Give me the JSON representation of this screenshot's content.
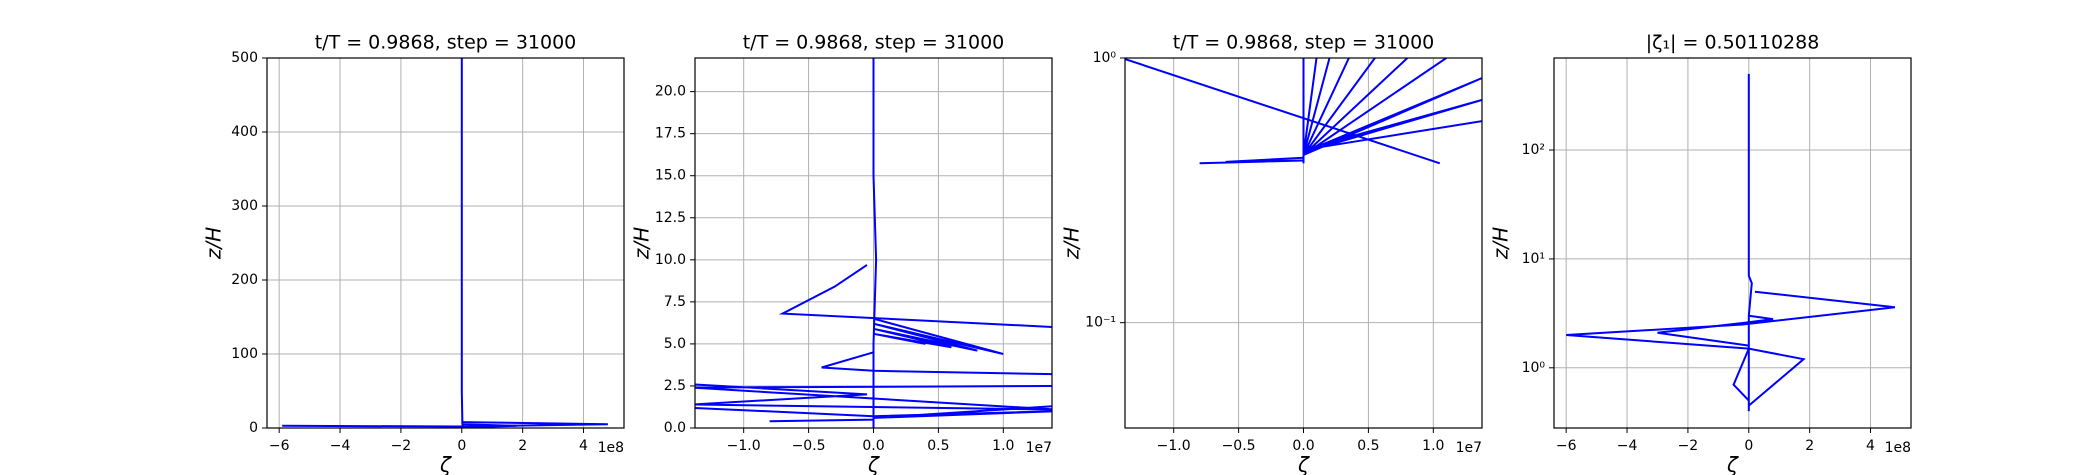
{
  "chart_data": [
    {
      "type": "line",
      "title": "t/T = 0.9868, step = 31000",
      "xlabel": "ζ",
      "ylabel": "z/H",
      "x_offset_label": "1e8",
      "grid": true,
      "xlim": [
        -6.4,
        5.33
      ],
      "ylim": [
        0,
        500
      ],
      "xticks": [
        {
          "value": -6,
          "label": "−6"
        },
        {
          "value": -4,
          "label": "−4"
        },
        {
          "value": -2,
          "label": "−2"
        },
        0,
        2,
        4
      ],
      "yticks": [
        0,
        100,
        200,
        300,
        400,
        500
      ],
      "series": [
        {
          "color": "#0000ff",
          "x": [
            0,
            0.05,
            0.02,
            0,
            0
          ],
          "values": [
            0,
            2,
            6,
            50,
            500
          ]
        },
        {
          "color": "#0000ff",
          "x": [
            -5.9,
            0,
            4.8,
            0
          ],
          "values": [
            3,
            2,
            5,
            8
          ]
        },
        {
          "color": "#0000ff",
          "x": [
            0,
            1.8,
            0
          ],
          "values": [
            1,
            3,
            5
          ]
        }
      ]
    },
    {
      "type": "line",
      "title": "t/T = 0.9868, step = 31000",
      "xlabel": "ζ",
      "ylabel": "z/H",
      "x_offset_label": "1e7",
      "grid": true,
      "xlim": [
        -1.375,
        1.375
      ],
      "ylim": [
        0,
        22
      ],
      "xticks": [
        {
          "value": -1,
          "label": "−1.0"
        },
        {
          "value": -0.5,
          "label": "−0.5"
        },
        {
          "value": 0,
          "label": "0.0"
        },
        {
          "value": 0.5,
          "label": "0.5"
        },
        {
          "value": 1,
          "label": "1.0"
        }
      ],
      "yticks": [
        {
          "value": 0,
          "label": "0.0"
        },
        2.5,
        {
          "value": 5,
          "label": "5.0"
        },
        7.5,
        {
          "value": 10,
          "label": "10.0"
        },
        12.5,
        {
          "value": 15,
          "label": "15.0"
        },
        17.5,
        {
          "value": 20,
          "label": "20.0"
        }
      ],
      "series": [
        {
          "color": "#0000ff",
          "x": [
            0,
            0,
            0.02,
            0,
            0,
            0
          ],
          "values": [
            0,
            5,
            10,
            15,
            20,
            22
          ]
        },
        {
          "color": "#0000ff",
          "x": [
            -0.05,
            -0.3,
            -0.7,
            1.4
          ],
          "values": [
            9.7,
            8.4,
            6.8,
            6.0
          ]
        },
        {
          "color": "#0000ff",
          "x": [
            0,
            -0.4,
            0,
            1.4
          ],
          "values": [
            4.5,
            3.6,
            3.4,
            3.2
          ]
        },
        {
          "color": "#0000ff",
          "x": [
            0,
            1.0,
            0,
            0.8,
            0,
            0.6,
            0,
            0.4
          ],
          "values": [
            6.5,
            4.4,
            6.2,
            4.6,
            5.9,
            4.8,
            5.6,
            5.0
          ]
        },
        {
          "color": "#0000ff",
          "x": [
            -1.4,
            -0.05,
            -1.4,
            1.4,
            -1.4,
            1.4
          ],
          "values": [
            2.6,
            2.0,
            1.4,
            1.1,
            2.4,
            2.5
          ]
        },
        {
          "color": "#0000ff",
          "x": [
            -1.4,
            0,
            1.4,
            0,
            1.4
          ],
          "values": [
            1.2,
            0.7,
            1.0,
            0.6,
            1.3
          ]
        },
        {
          "color": "#0000ff",
          "x": [
            -0.8,
            0,
            0
          ],
          "values": [
            0.4,
            0.5,
            1.2
          ]
        }
      ]
    },
    {
      "type": "line",
      "title": "t/T = 0.9868, step = 31000",
      "xlabel": "ζ",
      "ylabel": "z/H",
      "x_offset_label": "1e7",
      "grid": true,
      "yscale": "log",
      "xlim": [
        -1.375,
        1.375
      ],
      "ylim": [
        0.04,
        1
      ],
      "xticks": [
        {
          "value": -1,
          "label": "−1.0"
        },
        {
          "value": -0.5,
          "label": "−0.5"
        },
        {
          "value": 0,
          "label": "0.0"
        },
        {
          "value": 0.5,
          "label": "0.5"
        },
        {
          "value": 1,
          "label": "1.0"
        }
      ],
      "yticks": [
        {
          "value": 0.1,
          "label": "10⁻¹"
        },
        {
          "value": 1,
          "label": "10⁰"
        }
      ],
      "series": [
        {
          "color": "#0000ff",
          "x": [
            0,
            0,
            0
          ],
          "values": [
            0.4,
            0.6,
            1
          ]
        },
        {
          "color": "#0000ff",
          "x": [
            0,
            0.1,
            0,
            0.2,
            0,
            0.35,
            0,
            0.55,
            0,
            0.8,
            0,
            1.1,
            0,
            1.4,
            0,
            1.4,
            0,
            1.4
          ],
          "values": [
            0.43,
            1,
            0.43,
            1,
            0.43,
            1,
            0.43,
            1,
            0.43,
            1,
            0.43,
            1,
            0.43,
            0.85,
            0.44,
            0.7,
            0.45,
            0.58
          ]
        },
        {
          "color": "#0000ff",
          "x": [
            -1.4,
            1.05
          ],
          "values": [
            1,
            0.4
          ]
        },
        {
          "color": "#0000ff",
          "x": [
            -0.8,
            0,
            -0.6,
            0
          ],
          "values": [
            0.4,
            0.41,
            0.405,
            0.42
          ]
        }
      ]
    },
    {
      "type": "line",
      "title": "|ζ₁| = 0.50110288",
      "xlabel": "ζ",
      "ylabel": "z/H",
      "x_offset_label": "1e8",
      "grid": true,
      "yscale": "log",
      "xlim": [
        -6.4,
        5.33
      ],
      "ylim": [
        0.28,
        700
      ],
      "xticks": [
        {
          "value": -6,
          "label": "−6"
        },
        {
          "value": -4,
          "label": "−4"
        },
        {
          "value": -2,
          "label": "−2"
        },
        0,
        2,
        4
      ],
      "yticks": [
        {
          "value": 1,
          "label": "10⁰"
        },
        {
          "value": 10,
          "label": "10¹"
        },
        {
          "value": 100,
          "label": "10²"
        }
      ],
      "series": [
        {
          "color": "#0000ff",
          "x": [
            0,
            0,
            0,
            0.1,
            0,
            0
          ],
          "values": [
            0.4,
            1,
            3,
            6,
            7,
            500
          ]
        },
        {
          "color": "#0000ff",
          "x": [
            0,
            -6,
            -0.2,
            4.8,
            0.2
          ],
          "values": [
            1.5,
            2,
            2.5,
            3.6,
            5
          ]
        },
        {
          "color": "#0000ff",
          "x": [
            0,
            1.8,
            0,
            -0.5,
            0
          ],
          "values": [
            0.45,
            1.2,
            1.5,
            0.7,
            0.5
          ]
        },
        {
          "color": "#0000ff",
          "x": [
            0,
            -3,
            -0.1,
            0.8,
            0
          ],
          "values": [
            1.6,
            2.1,
            2.6,
            2.8,
            3
          ]
        }
      ]
    }
  ]
}
